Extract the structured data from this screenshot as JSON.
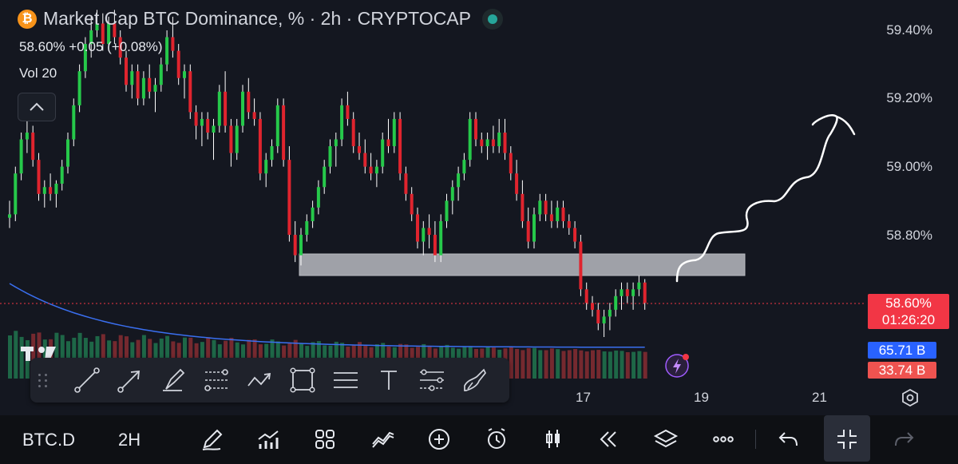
{
  "header": {
    "badge": "₿",
    "title": "Market Cap BTC Dominance, % · 2h · CRYPTOCAP",
    "values": "58.60% +0.05 (+0.08%)",
    "volume_label": "Vol 20"
  },
  "price_axis": {
    "ticks": [
      "59.40%",
      "59.20%",
      "59.00%",
      "58.80%"
    ]
  },
  "time_axis": {
    "ticks": [
      "17",
      "19",
      "21"
    ]
  },
  "last_price": {
    "value": "58.60%",
    "countdown": "01:26:20"
  },
  "volume_tags": {
    "ma": "65.71 B",
    "volume": "33.74 B"
  },
  "colors": {
    "up": "#26c94a",
    "down": "#e0242e",
    "background": "#141720",
    "volume_ma": "#3a6ff0",
    "price_line": "#f23645",
    "zone": "#c7c8cf"
  },
  "drawing_toolbar": {
    "tools": [
      "trend-line-icon",
      "arrow-line-icon",
      "brush-icon",
      "fib-retracement-icon",
      "path-icon",
      "rectangle-icon",
      "horizontal-lines-icon",
      "text-tool-icon",
      "projection-icon",
      "eraser-icon"
    ]
  },
  "bottom_bar": {
    "symbol": "BTC.D",
    "interval": "2H",
    "icons": [
      "pen-icon",
      "chart-indicators-icon",
      "grid-layout-icon",
      "compare-icon",
      "add-icon",
      "alarm-icon",
      "candles-icon",
      "replay-icon",
      "layers-icon",
      "more-icon",
      "undo-icon",
      "collapse-icon",
      "redo-icon"
    ]
  },
  "chart_data": {
    "type": "candlestick",
    "y_unit": "%",
    "ylim": [
      58.6,
      59.46
    ],
    "support_zone": [
      58.72,
      58.78
    ],
    "last_price": 58.6,
    "x_ticks": [
      "17",
      "19",
      "21"
    ],
    "y_ticks": [
      59.4,
      59.2,
      59.0,
      58.8
    ],
    "candles": [
      [
        58.85,
        58.9,
        58.82,
        58.86
      ],
      [
        58.86,
        59.0,
        58.84,
        58.98
      ],
      [
        58.98,
        59.1,
        58.96,
        59.08
      ],
      [
        59.08,
        59.14,
        59.04,
        59.1
      ],
      [
        59.1,
        59.12,
        59.0,
        59.02
      ],
      [
        59.02,
        59.04,
        58.9,
        58.92
      ],
      [
        58.92,
        58.96,
        58.88,
        58.94
      ],
      [
        58.94,
        58.98,
        58.9,
        58.92
      ],
      [
        58.92,
        58.96,
        58.88,
        58.95
      ],
      [
        58.95,
        59.02,
        58.93,
        59.0
      ],
      [
        59.0,
        59.1,
        58.98,
        59.08
      ],
      [
        59.08,
        59.2,
        59.06,
        59.18
      ],
      [
        59.18,
        59.3,
        59.16,
        59.28
      ],
      [
        59.28,
        59.38,
        59.26,
        59.36
      ],
      [
        59.36,
        59.44,
        59.32,
        59.4
      ],
      [
        59.4,
        59.46,
        59.38,
        59.42
      ],
      [
        59.42,
        59.45,
        59.34,
        59.36
      ],
      [
        59.36,
        59.44,
        59.34,
        59.42
      ],
      [
        59.42,
        59.46,
        59.36,
        59.38
      ],
      [
        59.38,
        59.4,
        59.3,
        59.32
      ],
      [
        59.32,
        59.34,
        59.22,
        59.24
      ],
      [
        59.24,
        59.3,
        59.2,
        59.28
      ],
      [
        59.28,
        59.3,
        59.18,
        59.2
      ],
      [
        59.2,
        59.28,
        59.18,
        59.26
      ],
      [
        59.26,
        59.3,
        59.2,
        59.22
      ],
      [
        59.22,
        59.26,
        59.16,
        59.24
      ],
      [
        59.24,
        59.32,
        59.22,
        59.3
      ],
      [
        59.3,
        59.4,
        59.28,
        59.38
      ],
      [
        59.38,
        59.44,
        59.32,
        59.34
      ],
      [
        59.34,
        59.36,
        59.24,
        59.26
      ],
      [
        59.26,
        59.3,
        59.2,
        59.28
      ],
      [
        59.28,
        59.3,
        59.14,
        59.16
      ],
      [
        59.16,
        59.18,
        59.08,
        59.12
      ],
      [
        59.12,
        59.16,
        59.06,
        59.14
      ],
      [
        59.14,
        59.16,
        59.08,
        59.1
      ],
      [
        59.1,
        59.14,
        59.02,
        59.12
      ],
      [
        59.12,
        59.24,
        59.1,
        59.22
      ],
      [
        59.22,
        59.28,
        59.1,
        59.12
      ],
      [
        59.12,
        59.14,
        59.0,
        59.04
      ],
      [
        59.04,
        59.14,
        59.02,
        59.12
      ],
      [
        59.12,
        59.24,
        59.1,
        59.22
      ],
      [
        59.22,
        59.26,
        59.14,
        59.16
      ],
      [
        59.16,
        59.2,
        59.12,
        59.14
      ],
      [
        59.14,
        59.16,
        58.96,
        58.98
      ],
      [
        58.98,
        59.04,
        58.94,
        59.02
      ],
      [
        59.02,
        59.08,
        59.0,
        59.06
      ],
      [
        59.06,
        59.2,
        59.04,
        59.18
      ],
      [
        59.18,
        59.2,
        59.0,
        59.02
      ],
      [
        59.02,
        59.06,
        58.78,
        58.8
      ],
      [
        58.8,
        58.84,
        58.72,
        58.74
      ],
      [
        58.74,
        58.82,
        58.71,
        58.8
      ],
      [
        58.8,
        58.86,
        58.78,
        58.84
      ],
      [
        58.84,
        58.9,
        58.82,
        58.88
      ],
      [
        58.88,
        58.96,
        58.86,
        58.94
      ],
      [
        58.94,
        59.02,
        58.92,
        59.0
      ],
      [
        59.0,
        59.08,
        58.98,
        59.06
      ],
      [
        59.06,
        59.1,
        59.0,
        59.08
      ],
      [
        59.08,
        59.2,
        59.06,
        59.18
      ],
      [
        59.18,
        59.22,
        59.12,
        59.14
      ],
      [
        59.14,
        59.16,
        59.04,
        59.06
      ],
      [
        59.06,
        59.1,
        59.02,
        59.04
      ],
      [
        59.04,
        59.08,
        58.98,
        59.0
      ],
      [
        59.0,
        59.04,
        58.96,
        58.98
      ],
      [
        58.98,
        59.02,
        58.94,
        59.0
      ],
      [
        59.0,
        59.1,
        58.98,
        59.08
      ],
      [
        59.08,
        59.14,
        59.04,
        59.06
      ],
      [
        59.06,
        59.16,
        59.04,
        59.14
      ],
      [
        59.14,
        59.16,
        58.96,
        58.98
      ],
      [
        58.98,
        59.0,
        58.9,
        58.92
      ],
      [
        58.92,
        58.94,
        58.84,
        58.86
      ],
      [
        58.86,
        58.88,
        58.76,
        58.78
      ],
      [
        58.78,
        58.84,
        58.74,
        58.82
      ],
      [
        58.82,
        58.86,
        58.76,
        58.8
      ],
      [
        58.8,
        58.84,
        58.72,
        58.74
      ],
      [
        58.74,
        58.86,
        58.72,
        58.84
      ],
      [
        58.84,
        58.92,
        58.82,
        58.9
      ],
      [
        58.9,
        58.96,
        58.86,
        58.94
      ],
      [
        58.94,
        59.0,
        58.9,
        58.98
      ],
      [
        58.98,
        59.04,
        58.96,
        59.02
      ],
      [
        59.02,
        59.16,
        59.0,
        59.14
      ],
      [
        59.14,
        59.16,
        59.06,
        59.08
      ],
      [
        59.08,
        59.1,
        59.04,
        59.06
      ],
      [
        59.06,
        59.1,
        59.02,
        59.08
      ],
      [
        59.08,
        59.12,
        59.04,
        59.06
      ],
      [
        59.06,
        59.14,
        59.04,
        59.1
      ],
      [
        59.1,
        59.14,
        59.02,
        59.04
      ],
      [
        59.04,
        59.06,
        58.96,
        58.98
      ],
      [
        58.98,
        59.02,
        58.9,
        58.92
      ],
      [
        58.92,
        58.96,
        58.82,
        58.84
      ],
      [
        58.84,
        58.88,
        58.76,
        58.78
      ],
      [
        58.78,
        58.88,
        58.76,
        58.86
      ],
      [
        58.86,
        58.92,
        58.84,
        58.9
      ],
      [
        58.9,
        58.92,
        58.84,
        58.86
      ],
      [
        58.86,
        58.9,
        58.82,
        58.84
      ],
      [
        58.84,
        58.9,
        58.82,
        58.88
      ],
      [
        58.88,
        58.9,
        58.82,
        58.84
      ],
      [
        58.84,
        58.86,
        58.8,
        58.82
      ],
      [
        58.82,
        58.84,
        58.76,
        58.78
      ],
      [
        58.78,
        58.8,
        58.62,
        58.64
      ],
      [
        58.64,
        58.66,
        58.58,
        58.6
      ],
      [
        58.6,
        58.62,
        58.56,
        58.58
      ],
      [
        58.58,
        58.6,
        58.52,
        58.54
      ],
      [
        58.54,
        58.58,
        58.5,
        58.56
      ],
      [
        58.56,
        58.6,
        58.52,
        58.58
      ],
      [
        58.58,
        58.64,
        58.56,
        58.62
      ],
      [
        58.62,
        58.66,
        58.58,
        58.64
      ],
      [
        58.64,
        58.66,
        58.6,
        58.62
      ],
      [
        58.62,
        58.66,
        58.58,
        58.64
      ],
      [
        58.64,
        58.68,
        58.62,
        58.66
      ],
      [
        58.66,
        58.67,
        58.58,
        58.6
      ]
    ],
    "volume_ma_trend": "declining"
  }
}
